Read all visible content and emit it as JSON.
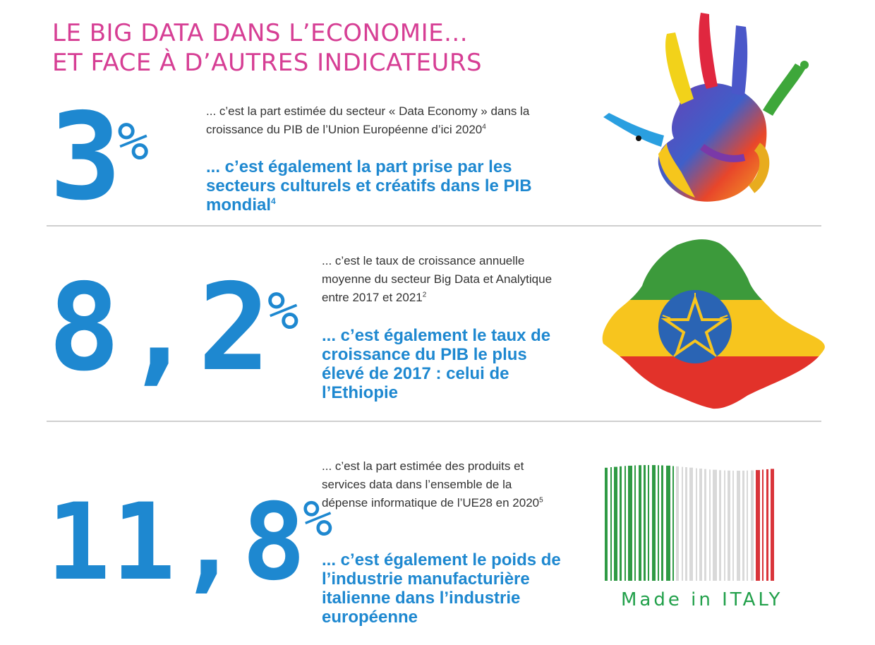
{
  "header": {
    "line1": "LE BIG DATA DANS L’ECONOMIE...",
    "line2": "ET FACE À D’AUTRES INDICATEURS"
  },
  "accent_color": "#1e88d0",
  "title_color": "#d63e94",
  "stats": [
    {
      "value": "3",
      "unit": "%",
      "description": "... c’est la part estimée du secteur « Data Economy » dans la croissance du PIB de l’Union Européenne d’ici 2020",
      "description_ref": "4",
      "comparison": "... c’est également la part prise par les secteurs culturels et créatifs dans le PIB mondial",
      "comparison_ref": "4",
      "image": "paint-hand-icon"
    },
    {
      "value": "8,2",
      "unit": "%",
      "description": "... c’est le taux de croissance annuelle moyenne du secteur Big Data et Analytique entre 2017 et 2021",
      "description_ref": "2",
      "comparison": "... c’est également le taux de croissance du PIB le plus élevé de 2017 : celui de l’Ethiopie",
      "comparison_ref": "",
      "image": "ethiopia-map-flag-icon"
    },
    {
      "value": "11,8",
      "unit": "%",
      "description": "... c’est la part estimée des produits et services data dans l’ensemble de la dépense informatique de l’UE28 en 2020",
      "description_ref": "5",
      "comparison": "... c’est également le poids de l’industrie manufacturière italienne dans l’industrie européenne",
      "comparison_ref": "",
      "image": "italy-barcode-icon",
      "image_caption": "Made in ITALY"
    }
  ]
}
